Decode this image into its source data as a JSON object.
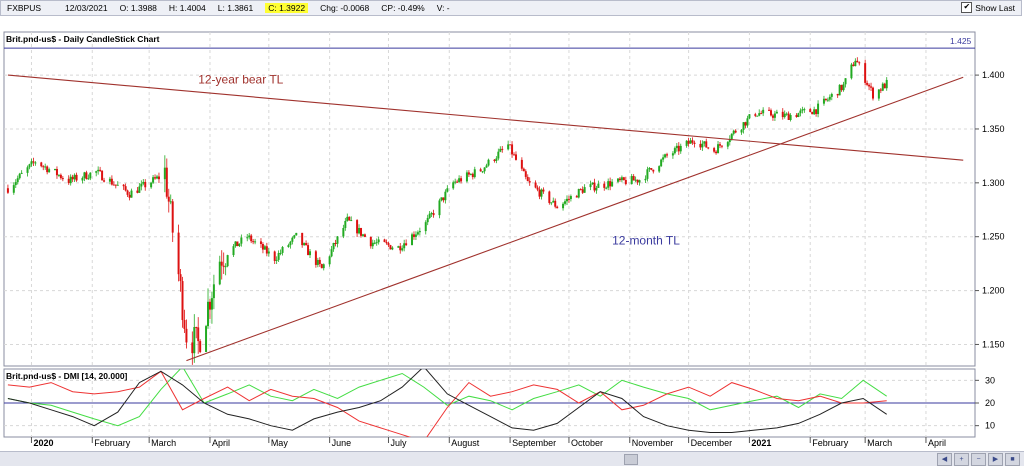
{
  "toolbar": {
    "symbol": "FXBPUS",
    "date": "12/03/2021",
    "open": "O: 1.3988",
    "high": "H: 1.4004",
    "low": "L: 1.3861",
    "close": "C: 1.3922",
    "change": "Chg: -0.0068",
    "change_pct": "CP: -0.49%",
    "volume": "V: -",
    "show_last_label": "Show Last",
    "show_last_checked": true
  },
  "chart_data": [
    {
      "type": "candlestick",
      "title": "Brit.pnd-us$ - Daily CandleStick Chart",
      "ylim": [
        1.13,
        1.44
      ],
      "y_ticks": [
        "1.150",
        "1.200",
        "1.250",
        "1.300",
        "1.350",
        "1.400"
      ],
      "colors": {
        "up": "#22aa22",
        "down": "#dd1111"
      },
      "trend_lines": [
        {
          "name": "12-year bear TL",
          "color": "#a0322d",
          "points": [
            [
              "2019-12-20",
              1.4
            ],
            [
              "2021-04-20",
              1.321
            ]
          ]
        },
        {
          "name": "12-month TL",
          "color": "#a0322d",
          "points": [
            [
              "2020-03-20",
              1.135
            ],
            [
              "2021-04-20",
              1.398
            ]
          ]
        }
      ],
      "resistance": {
        "value": 1.425,
        "label": "1.425",
        "color": "#3a3a9e"
      },
      "price_path": [
        [
          "2019-12-20",
          1.295
        ],
        [
          "2020-01-03",
          1.32
        ],
        [
          "2020-01-20",
          1.302
        ],
        [
          "2020-02-03",
          1.31
        ],
        [
          "2020-02-20",
          1.29
        ],
        [
          "2020-03-06",
          1.305
        ],
        [
          "2020-03-09",
          1.31
        ],
        [
          "2020-03-20",
          1.16
        ],
        [
          "2020-03-26",
          1.15
        ],
        [
          "2020-04-06",
          1.23
        ],
        [
          "2020-04-20",
          1.25
        ],
        [
          "2020-05-04",
          1.23
        ],
        [
          "2020-05-15",
          1.25
        ],
        [
          "2020-05-28",
          1.22
        ],
        [
          "2020-06-10",
          1.265
        ],
        [
          "2020-06-22",
          1.245
        ],
        [
          "2020-07-06",
          1.24
        ],
        [
          "2020-07-20",
          1.262
        ],
        [
          "2020-08-03",
          1.3
        ],
        [
          "2020-08-17",
          1.312
        ],
        [
          "2020-08-31",
          1.335
        ],
        [
          "2020-09-10",
          1.3
        ],
        [
          "2020-09-25",
          1.278
        ],
        [
          "2020-10-09",
          1.295
        ],
        [
          "2020-10-23",
          1.3
        ],
        [
          "2020-11-06",
          1.303
        ],
        [
          "2020-11-20",
          1.325
        ],
        [
          "2020-12-04",
          1.34
        ],
        [
          "2020-12-14",
          1.33
        ],
        [
          "2021-01-04",
          1.365
        ],
        [
          "2021-01-20",
          1.362
        ],
        [
          "2021-02-04",
          1.368
        ],
        [
          "2021-02-18",
          1.39
        ],
        [
          "2021-02-24",
          1.415
        ],
        [
          "2021-03-05",
          1.382
        ],
        [
          "2021-03-12",
          1.392
        ]
      ],
      "x_labels": [
        "2020",
        "February",
        "March",
        "April",
        "May",
        "June",
        "July",
        "August",
        "September",
        "October",
        "November",
        "December",
        "2021",
        "February",
        "March",
        "April"
      ]
    },
    {
      "type": "line",
      "title": "Brit.pnd-us$ - DMI [14, 20.000]",
      "ylim": [
        5,
        35
      ],
      "y_ticks": [
        "10",
        "20",
        "30"
      ],
      "reference_line": {
        "value": 20,
        "color": "#3a3a9e"
      },
      "series": [
        {
          "color": "#44dd44",
          "values": [
            22,
            20,
            19,
            16,
            13,
            10,
            14,
            26,
            36,
            20,
            24,
            28,
            23,
            21,
            26,
            22,
            27,
            30,
            33,
            27,
            19,
            23,
            21,
            17,
            22,
            25,
            28,
            23,
            30,
            27,
            24,
            22,
            17,
            19,
            21,
            23,
            18,
            24,
            22,
            30,
            23
          ]
        },
        {
          "color": "#ee3333",
          "values": [
            28,
            27,
            29,
            25,
            24,
            25,
            27,
            34,
            17,
            22,
            27,
            21,
            26,
            23,
            22,
            18,
            12,
            9,
            6,
            3,
            18,
            29,
            23,
            25,
            28,
            26,
            20,
            25,
            17,
            19,
            24,
            27,
            23,
            29,
            26,
            22,
            21,
            23,
            20,
            20,
            21
          ]
        },
        {
          "color": "#222222",
          "values": [
            22,
            20,
            17,
            14,
            10,
            16,
            29,
            34,
            28,
            20,
            15,
            13,
            10,
            8,
            13,
            16,
            18,
            21,
            27,
            36,
            24,
            19,
            14,
            9,
            8,
            11,
            18,
            25,
            22,
            14,
            10,
            8,
            7,
            7,
            8,
            9,
            11,
            15,
            20,
            22,
            15
          ]
        }
      ]
    }
  ]
}
